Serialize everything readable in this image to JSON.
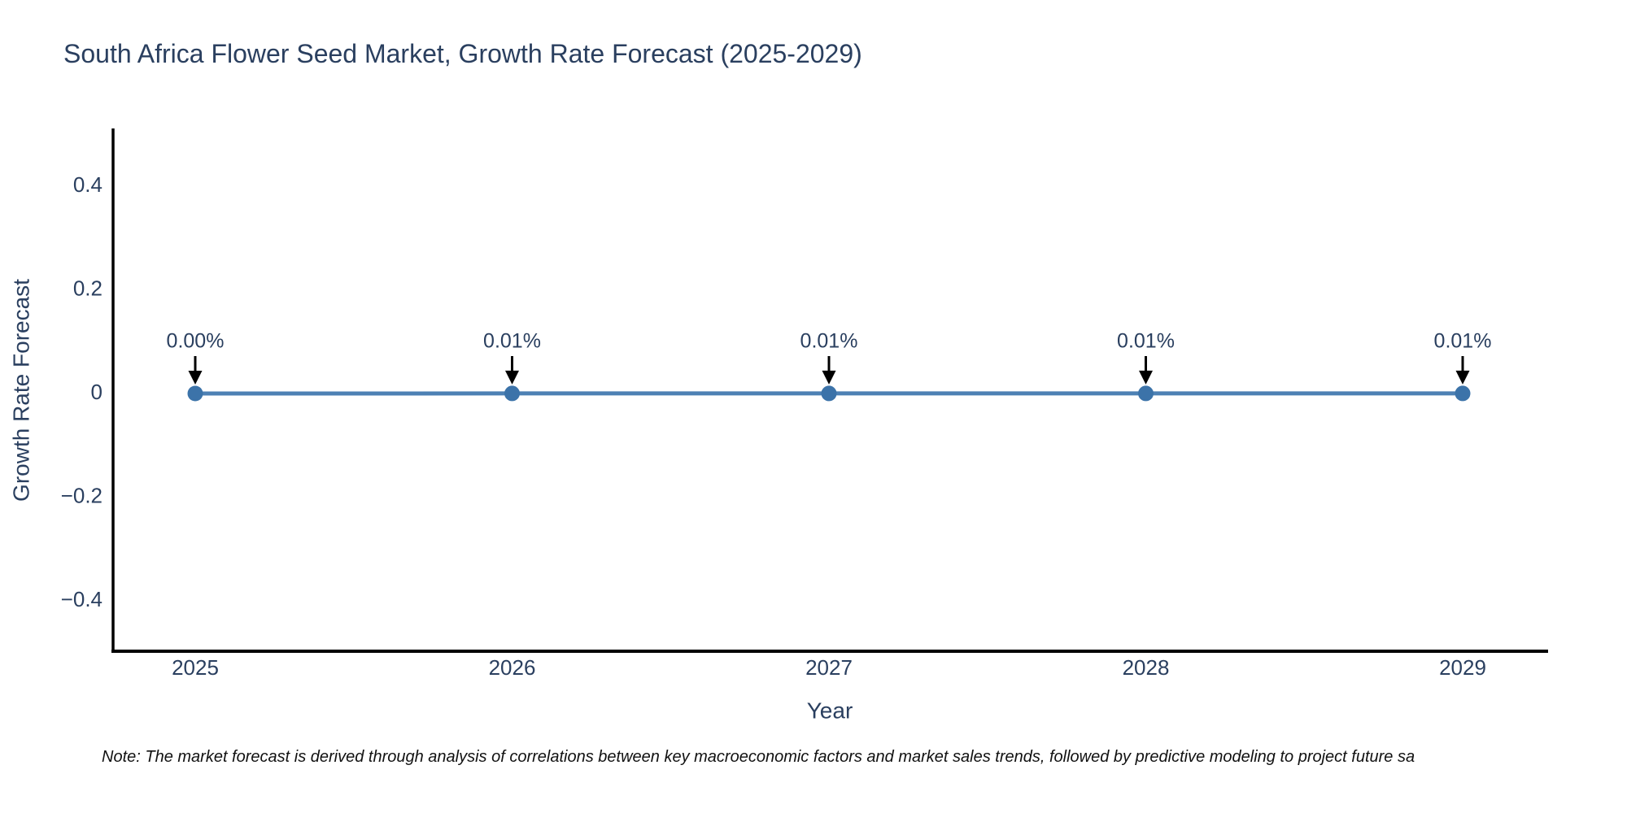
{
  "page": {
    "background": "#ffffff"
  },
  "chart": {
    "title": "South Africa Flower Seed Market, Growth Rate Forecast (2025-2029)"
  },
  "note": "Note: The market forecast is derived through analysis of correlations between key macroeconomic factors and market sales trends, followed by predictive modeling to project future sa",
  "chart_data": {
    "type": "line",
    "x": [
      "2025",
      "2026",
      "2027",
      "2028",
      "2029"
    ],
    "series": [
      {
        "name": "Growth Rate Forecast",
        "values": [
          0.0,
          0.0001,
          0.0001,
          0.0001,
          0.0001
        ]
      }
    ],
    "point_labels": [
      "0.00%",
      "0.01%",
      "0.01%",
      "0.01%",
      "0.01%"
    ],
    "title": "South Africa Flower Seed Market, Growth Rate Forecast (2025-2029)",
    "xlabel": "Year",
    "ylabel": "Growth Rate Forecast",
    "ylim": [
      -0.5,
      0.51
    ],
    "yticks": [
      0.4,
      0.2,
      0,
      -0.2,
      -0.4
    ],
    "ytick_labels": [
      "0.4",
      "0.2",
      "0",
      "−0.2",
      "−0.4"
    ],
    "grid": false,
    "legend_visible": false,
    "annotation_style": "label-with-down-arrow",
    "colors": {
      "line": "#4d81b4",
      "marker": "#3c73a9",
      "arrow": "#000000",
      "text": "#2a3f5f",
      "axis": "#000000"
    }
  }
}
